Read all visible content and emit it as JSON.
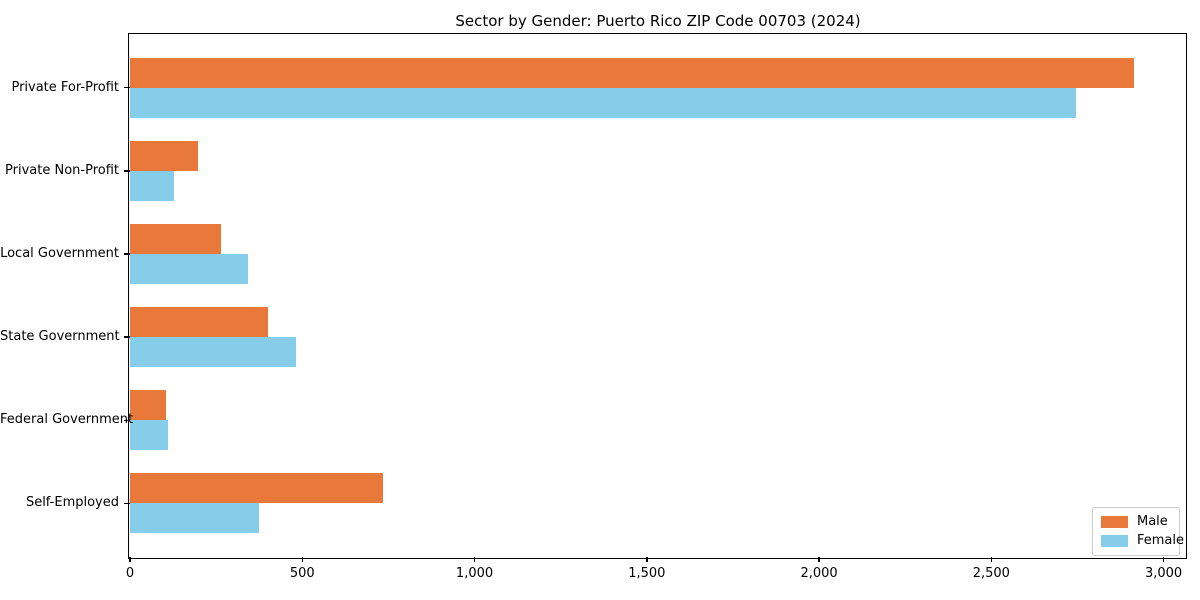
{
  "chart_data": {
    "type": "bar",
    "orientation": "horizontal",
    "title": "Sector by Gender: Puerto Rico ZIP Code 00703 (2024)",
    "categories": [
      "Private For-Profit",
      "Private Non-Profit",
      "Local Government",
      "State Government",
      "Federal Government",
      "Self-Employed"
    ],
    "series": [
      {
        "name": "Male",
        "color": "#E8793B",
        "values": [
          2915,
          197,
          264,
          400,
          104,
          733
        ]
      },
      {
        "name": "Female",
        "color": "#85CDE8",
        "values": [
          2745,
          128,
          342,
          482,
          111,
          373
        ]
      }
    ],
    "xlabel": "",
    "ylabel": "",
    "xlim": [
      0,
      3065
    ],
    "xticks": [
      {
        "value": 0,
        "label": "0"
      },
      {
        "value": 500,
        "label": "500"
      },
      {
        "value": 1000,
        "label": "1,000"
      },
      {
        "value": 1500,
        "label": "1,500"
      },
      {
        "value": 2000,
        "label": "2,000"
      },
      {
        "value": 2500,
        "label": "2,500"
      },
      {
        "value": 3000,
        "label": "3,000"
      }
    ],
    "grid": false,
    "legend_position": "lower right",
    "background": "#ffffff",
    "spine_color": "#000000"
  }
}
